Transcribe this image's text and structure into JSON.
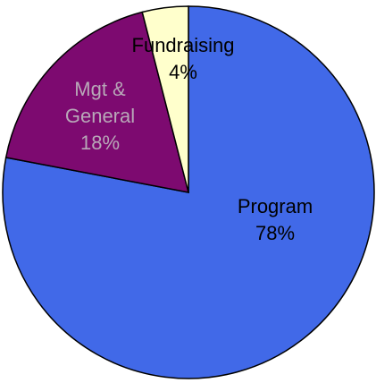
{
  "chart_data": {
    "type": "pie",
    "categories": [
      "Program",
      "Mgt & General",
      "Fundraising"
    ],
    "values": [
      78,
      18,
      4
    ],
    "value_labels": [
      "78%",
      "18%",
      "4%"
    ],
    "colors": [
      "#4169e8",
      "#7d0a70",
      "#ffffcc"
    ]
  }
}
